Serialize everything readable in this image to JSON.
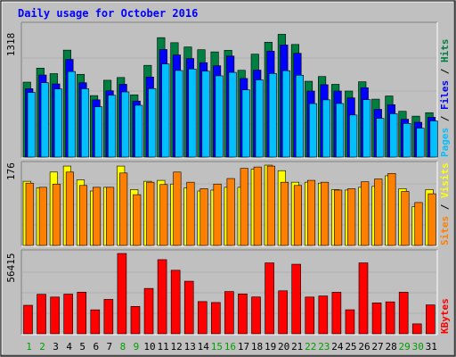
{
  "title": "Daily usage for October 2016",
  "colors": {
    "background": "#c0c0c0",
    "panel": "#c0c0c0",
    "title": "#0000ff",
    "hits": "#008040",
    "files": "#0000ff",
    "pages": "#00c0ff",
    "visits": "#ffff00",
    "sites": "#ff8000",
    "kbytes": "#ff0000"
  },
  "chart_data": [
    {
      "type": "bar",
      "panel": "hits-files-pages",
      "y_max_label": "1318",
      "ylim": [
        0,
        1318
      ],
      "label_parts": [
        "Pages",
        "Files",
        "Hits"
      ],
      "categories": [
        "1",
        "2",
        "3",
        "4",
        "5",
        "6",
        "7",
        "8",
        "9",
        "10",
        "11",
        "12",
        "13",
        "14",
        "15",
        "16",
        "17",
        "18",
        "19",
        "20",
        "21",
        "22",
        "23",
        "24",
        "25",
        "26",
        "27",
        "28",
        "29",
        "30",
        "31"
      ],
      "series": [
        {
          "name": "Hits",
          "values": [
            758,
            900,
            844,
            1082,
            837,
            622,
            777,
            805,
            630,
            928,
            1208,
            1157,
            1114,
            1086,
            1064,
            1080,
            878,
            1041,
            1162,
            1242,
            1139,
            767,
            815,
            736,
            668,
            762,
            586,
            618,
            463,
            414,
            449
          ]
        },
        {
          "name": "Files",
          "values": [
            692,
            830,
            740,
            988,
            752,
            579,
            671,
            736,
            567,
            810,
            1088,
            1033,
            997,
            955,
            924,
            1022,
            795,
            880,
            1072,
            1134,
            1050,
            668,
            732,
            668,
            599,
            702,
            483,
            530,
            383,
            352,
            402
          ]
        },
        {
          "name": "Pages",
          "values": [
            654,
            752,
            689,
            865,
            691,
            509,
            625,
            659,
            524,
            693,
            942,
            876,
            891,
            869,
            822,
            857,
            680,
            781,
            845,
            874,
            828,
            541,
            579,
            542,
            426,
            581,
            392,
            439,
            340,
            293,
            366
          ]
        }
      ]
    },
    {
      "type": "bar",
      "panel": "visits-sites",
      "y_max_label": "176",
      "ylim": [
        0,
        176
      ],
      "label_parts": [
        "Sites",
        "Visits"
      ],
      "categories": [
        "1",
        "2",
        "3",
        "4",
        "5",
        "6",
        "7",
        "8",
        "9",
        "10",
        "11",
        "12",
        "13",
        "14",
        "15",
        "16",
        "17",
        "18",
        "19",
        "20",
        "21",
        "22",
        "23",
        "24",
        "25",
        "26",
        "27",
        "28",
        "29",
        "30",
        "31"
      ],
      "series": [
        {
          "name": "Visits",
          "values": [
            139,
            125,
            159,
            172,
            142,
            118,
            126,
            172,
            121,
            139,
            141,
            133,
            125,
            118,
            120,
            126,
            126,
            165,
            174,
            162,
            137,
            137,
            135,
            121,
            120,
            126,
            128,
            151,
            123,
            84,
            121
          ]
        },
        {
          "name": "Sites",
          "values": [
            135,
            126,
            133,
            159,
            130,
            126,
            126,
            157,
            110,
            137,
            132,
            159,
            137,
            123,
            133,
            145,
            167,
            170,
            172,
            137,
            130,
            141,
            137,
            120,
            123,
            138,
            144,
            156,
            117,
            93,
            112
          ]
        }
      ]
    },
    {
      "type": "bar",
      "panel": "kbytes",
      "y_max_label": "56415",
      "ylim": [
        0,
        56415
      ],
      "label_parts": [
        "KBytes"
      ],
      "categories": [
        "1",
        "2",
        "3",
        "4",
        "5",
        "6",
        "7",
        "8",
        "9",
        "10",
        "11",
        "12",
        "13",
        "14",
        "15",
        "16",
        "17",
        "18",
        "19",
        "20",
        "21",
        "22",
        "23",
        "24",
        "25",
        "26",
        "27",
        "28",
        "29",
        "30",
        "31"
      ],
      "series": [
        {
          "name": "KBytes",
          "values": [
            20048,
            27762,
            25817,
            27891,
            29245,
            16838,
            24185,
            56415,
            19242,
            31874,
            52076,
            44638,
            36935,
            22648,
            21993,
            29712,
            28015,
            25888,
            49812,
            30220,
            48858,
            25826,
            26580,
            29196,
            16894,
            49812,
            21720,
            22440,
            29212,
            6978,
            20316
          ]
        }
      ]
    }
  ],
  "weekend_days": [
    1,
    2,
    8,
    9,
    15,
    16,
    22,
    23,
    29,
    30
  ]
}
